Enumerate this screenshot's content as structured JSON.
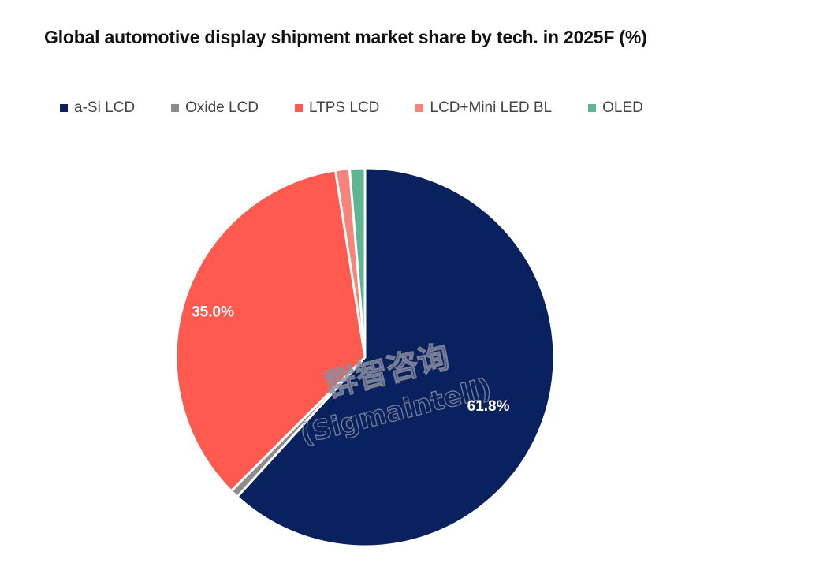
{
  "chart_data": {
    "type": "pie",
    "title": "Global automotive display shipment market share by tech. in 2025F (%)",
    "legend_position": "top",
    "start_angle_deg": 0,
    "direction": "clockwise",
    "slices": [
      {
        "name": "a-Si LCD",
        "value": 61.8,
        "color": "#0a2160",
        "label": "61.8%"
      },
      {
        "name": "Oxide LCD",
        "value": 0.7,
        "color": "#8c8c8c",
        "label": ""
      },
      {
        "name": "LTPS LCD",
        "value": 35.0,
        "color": "#ff5a4f",
        "label": "35.0%"
      },
      {
        "name": "LCD+Mini LED BL",
        "value": 1.2,
        "color": "#f7847a",
        "label": ""
      },
      {
        "name": "OLED",
        "value": 1.3,
        "color": "#5db594",
        "label": ""
      }
    ],
    "watermark": {
      "line1": "群智咨询",
      "line2": "(Sigmaintell)"
    }
  }
}
